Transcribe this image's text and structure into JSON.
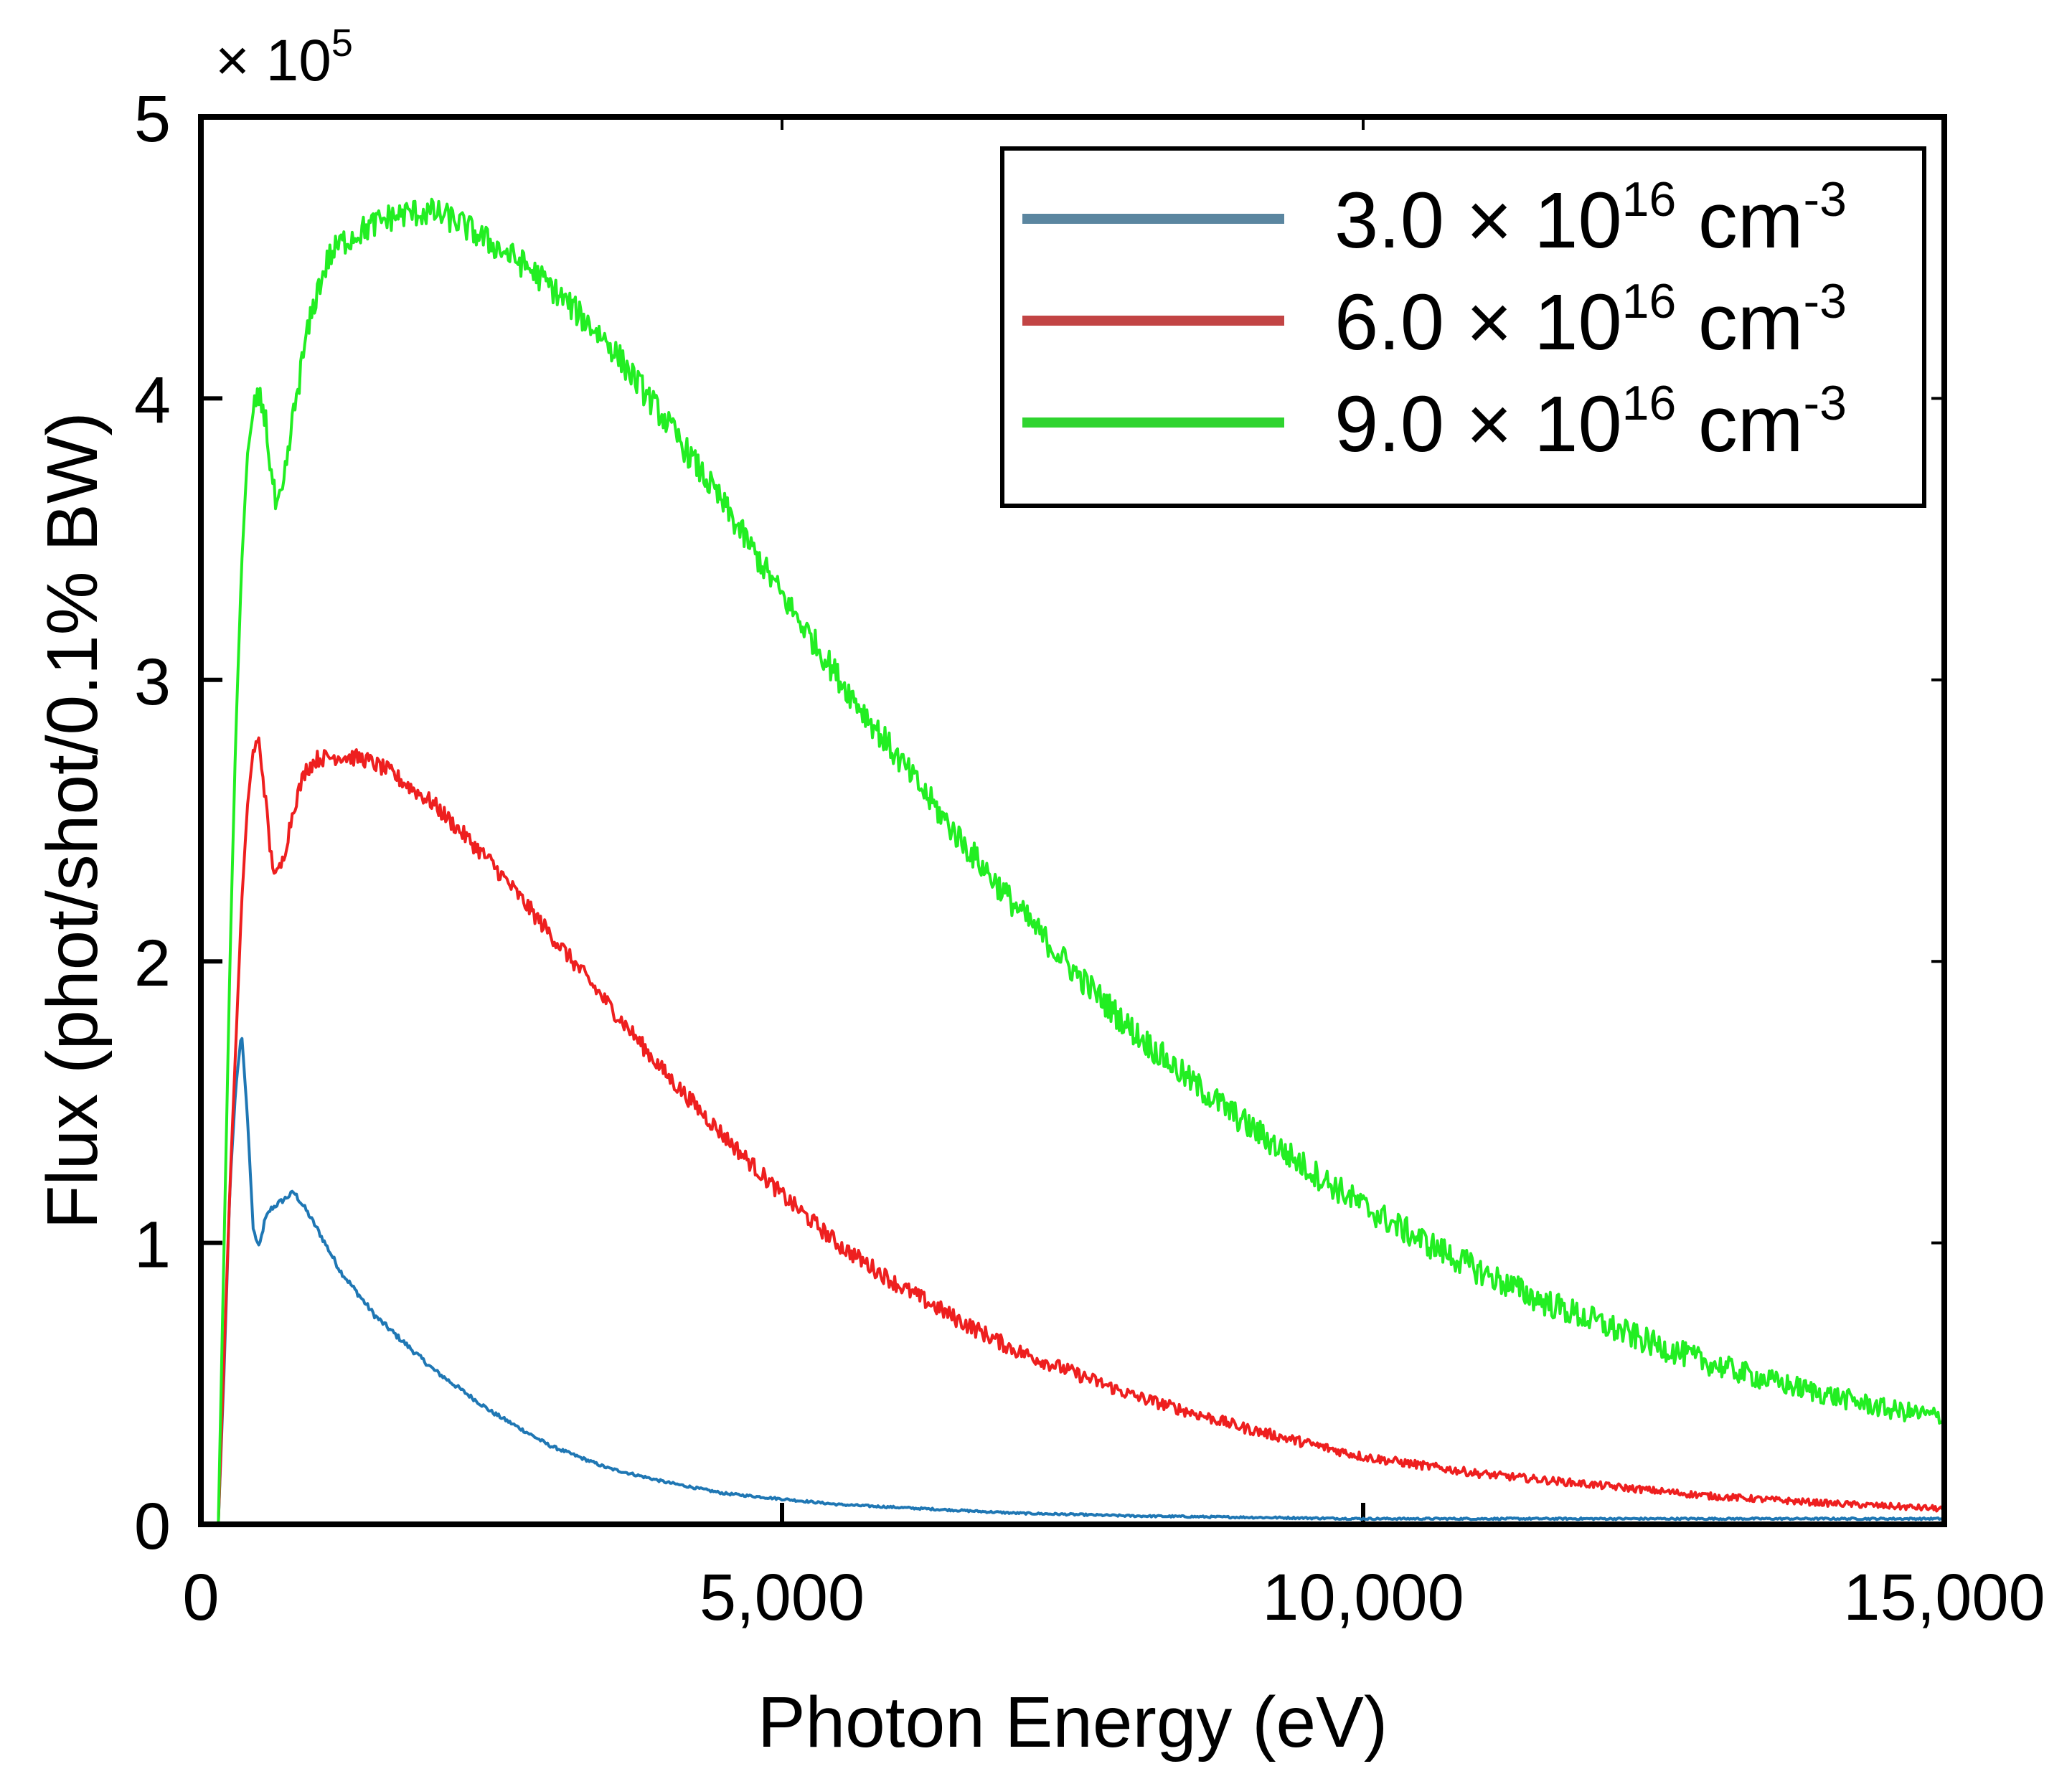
{
  "chart_data": {
    "type": "line",
    "xlabel": "Photon Energy (eV)",
    "ylabel": "Flux (phot/shot/0.1% BW)",
    "y_multiplier": {
      "base": "× 10",
      "exponent": "5"
    },
    "xlim": [
      0,
      15000
    ],
    "ylim": [
      0,
      5
    ],
    "x_ticks": [
      0,
      5000,
      10000,
      15000
    ],
    "x_tick_labels": [
      "0",
      "5,000",
      "10,000",
      "15,000"
    ],
    "y_ticks": [
      0,
      1,
      2,
      3,
      4,
      5
    ],
    "y_tick_labels": [
      "0",
      "1",
      "2",
      "3",
      "4",
      "5"
    ],
    "grid": false,
    "legend_position": "top-right",
    "series": [
      {
        "name": "3.0 × 10^16 cm^-3",
        "label_main": "3.0 × 10",
        "label_exp": "16",
        "label_unit": " cm",
        "label_unit_exp": "-3",
        "color": "#1f77b4",
        "legend_color": "#5b86a0",
        "noise": 0.01,
        "x": [
          150,
          200,
          250,
          300,
          350,
          400,
          450,
          500,
          550,
          600,
          700,
          800,
          900,
          1000,
          1200,
          1500,
          2000,
          2500,
          3000,
          3500,
          4000,
          4500,
          5000,
          5500,
          6000,
          7000,
          8000,
          9000,
          10000,
          11000,
          12000,
          13000,
          14000,
          15000
        ],
        "y": [
          0.0,
          0.55,
          1.2,
          1.55,
          1.75,
          1.45,
          1.05,
          0.98,
          1.08,
          1.12,
          1.15,
          1.18,
          1.12,
          1.05,
          0.9,
          0.74,
          0.55,
          0.4,
          0.28,
          0.2,
          0.15,
          0.11,
          0.09,
          0.07,
          0.06,
          0.04,
          0.03,
          0.025,
          0.02,
          0.02,
          0.02,
          0.02,
          0.02,
          0.02
        ]
      },
      {
        "name": "6.0 × 10^16 cm^-3",
        "label_main": "6.0 × 10",
        "label_exp": "16",
        "label_unit": " cm",
        "label_unit_exp": "-3",
        "color": "#ee1f1f",
        "legend_color": "#c24444",
        "noise": 0.03,
        "x": [
          150,
          200,
          250,
          300,
          350,
          400,
          450,
          500,
          550,
          600,
          650,
          700,
          750,
          800,
          900,
          1000,
          1200,
          1400,
          1600,
          1800,
          2000,
          2500,
          3000,
          3500,
          4000,
          4500,
          5000,
          5500,
          6000,
          6500,
          7000,
          7500,
          8000,
          8500,
          9000,
          9500,
          10000,
          11000,
          12000,
          13000,
          14000,
          15000
        ],
        "y": [
          0.0,
          0.6,
          1.2,
          1.7,
          2.2,
          2.55,
          2.75,
          2.78,
          2.6,
          2.38,
          2.3,
          2.35,
          2.45,
          2.55,
          2.68,
          2.72,
          2.73,
          2.72,
          2.68,
          2.62,
          2.56,
          2.35,
          2.1,
          1.85,
          1.6,
          1.38,
          1.17,
          0.99,
          0.85,
          0.73,
          0.62,
          0.54,
          0.46,
          0.4,
          0.34,
          0.29,
          0.24,
          0.18,
          0.14,
          0.1,
          0.075,
          0.055
        ]
      },
      {
        "name": "9.0 × 10^16 cm^-3",
        "label_main": "9.0 × 10",
        "label_exp": "16",
        "label_unit": " cm",
        "label_unit_exp": "-3",
        "color": "#22ee22",
        "legend_color": "#2fd42f",
        "noise": 0.05,
        "x": [
          150,
          200,
          250,
          300,
          350,
          400,
          450,
          500,
          550,
          600,
          650,
          700,
          750,
          800,
          900,
          1000,
          1100,
          1200,
          1400,
          1600,
          1800,
          2000,
          2200,
          2500,
          2800,
          3000,
          3500,
          4000,
          4500,
          5000,
          5500,
          6000,
          6500,
          7000,
          7500,
          8000,
          8500,
          9000,
          9500,
          10000,
          10500,
          11000,
          11500,
          12000,
          12500,
          13000,
          13500,
          14000,
          14500,
          15000
        ],
        "y": [
          0.0,
          1.0,
          2.0,
          2.8,
          3.4,
          3.8,
          3.95,
          4.0,
          3.95,
          3.75,
          3.6,
          3.65,
          3.8,
          3.95,
          4.2,
          4.38,
          4.5,
          4.55,
          4.6,
          4.64,
          4.66,
          4.66,
          4.63,
          4.55,
          4.47,
          4.4,
          4.2,
          3.92,
          3.62,
          3.3,
          3.0,
          2.72,
          2.45,
          2.2,
          1.97,
          1.76,
          1.58,
          1.42,
          1.27,
          1.13,
          1.01,
          0.9,
          0.8,
          0.72,
          0.64,
          0.57,
          0.51,
          0.46,
          0.41,
          0.38
        ]
      }
    ]
  }
}
